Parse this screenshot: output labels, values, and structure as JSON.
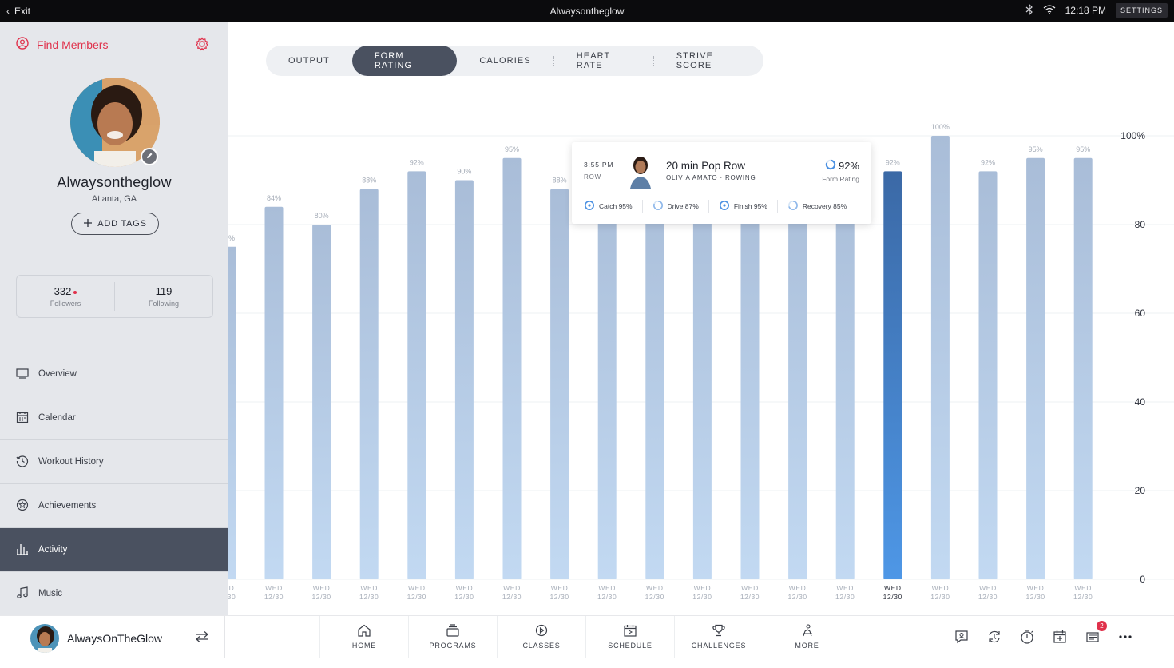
{
  "topbar": {
    "exit_label": "Exit",
    "title": "Alwaysontheglow",
    "time": "12:18 PM",
    "settings_label": "SETTINGS"
  },
  "sidebar": {
    "find_members": "Find Members",
    "profile": {
      "name": "Alwaysontheglow",
      "location": "Atlanta, GA",
      "add_tags": "ADD TAGS"
    },
    "stats": {
      "followers": "332",
      "followers_label": "Followers",
      "following": "119",
      "following_label": "Following"
    },
    "nav": [
      {
        "label": "Overview",
        "icon": "overview-icon"
      },
      {
        "label": "Calendar",
        "icon": "calendar-icon"
      },
      {
        "label": "Workout History",
        "icon": "history-icon"
      },
      {
        "label": "Achievements",
        "icon": "achievements-icon"
      },
      {
        "label": "Activity",
        "icon": "activity-icon",
        "active": true
      },
      {
        "label": "Music",
        "icon": "music-icon"
      }
    ]
  },
  "tabs": [
    "OUTPUT",
    "FORM RATING",
    "CALORIES",
    "HEART RATE",
    "STRIVE SCORE"
  ],
  "active_tab": "FORM RATING",
  "chart_data": {
    "type": "bar",
    "ylim": [
      0,
      100
    ],
    "yticks": [
      "0",
      "20",
      "40",
      "60",
      "80",
      "100%"
    ],
    "x_line1": "WED",
    "x_line2": "12/30",
    "partial_edge": {
      "x_line1": "D",
      "x_line2": "30",
      "label": "%"
    },
    "values": [
      84,
      80,
      88,
      92,
      90,
      95,
      88,
      92,
      92,
      92,
      92,
      92,
      92,
      92,
      100,
      92,
      95,
      95
    ],
    "labels": [
      "84%",
      "80%",
      "88%",
      "92%",
      "90%",
      "95%",
      "88%",
      "",
      "",
      "",
      "",
      "",
      "",
      "92%",
      "100%",
      "92%",
      "95%",
      "95%"
    ],
    "highlight_index": 13,
    "colors": {
      "bar_top": "#a9bdd8",
      "bar_bottom": "#c2d9f2",
      "hl_top": "#3b69a6",
      "hl_bottom": "#4e97e6"
    }
  },
  "tooltip": {
    "time": "3:55 PM",
    "kind": "ROW",
    "class_name": "20 min Pop Row",
    "instructor": "OLIVIA AMATO · ROWING",
    "score": "92%",
    "score_label": "Form Rating",
    "metrics": [
      "Catch 95%",
      "Drive 87%",
      "Finish 95%",
      "Recovery 85%"
    ]
  },
  "bottombar": {
    "username": "AlwaysOnTheGlow",
    "nav": [
      "HOME",
      "PROGRAMS",
      "CLASSES",
      "SCHEDULE",
      "CHALLENGES",
      "MORE"
    ],
    "notifications_badge": "2"
  }
}
